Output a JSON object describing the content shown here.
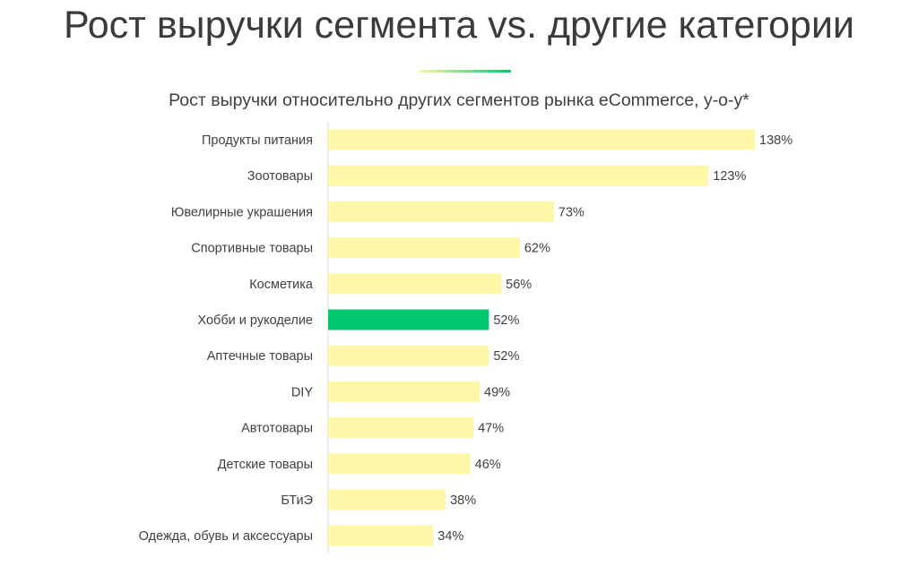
{
  "slide": {
    "title": "Рост выручки сегмента vs. другие категории",
    "accent_gradient": [
      "#fff6a0",
      "#00c86e"
    ]
  },
  "colors": {
    "bar": "#fff7a8",
    "highlight": "#00c86e",
    "axis": "#d9d9d9",
    "text": "#404040"
  },
  "chart_data": {
    "type": "bar",
    "orientation": "horizontal",
    "title": "Рост выручки относительно других сегментов рынка eCommerce, y-o-y*",
    "categories": [
      "Продукты питания",
      "Зоотовары",
      "Ювелирные украшения",
      "Спортивные товары",
      "Косметика",
      "Хобби и рукоделие",
      "Аптечные товары",
      "DIY",
      "Автотовары",
      "Детские товары",
      "БТиЭ",
      "Одежда, обувь и аксессуары"
    ],
    "values": [
      138,
      123,
      73,
      62,
      56,
      52,
      52,
      49,
      47,
      46,
      38,
      34
    ],
    "value_labels": [
      "138%",
      "123%",
      "73%",
      "62%",
      "56%",
      "52%",
      "52%",
      "49%",
      "47%",
      "46%",
      "38%",
      "34%"
    ],
    "highlighted_category": "Хобби и рукоделие",
    "xlim": [
      0,
      138
    ],
    "grid": false,
    "legend": "none"
  }
}
